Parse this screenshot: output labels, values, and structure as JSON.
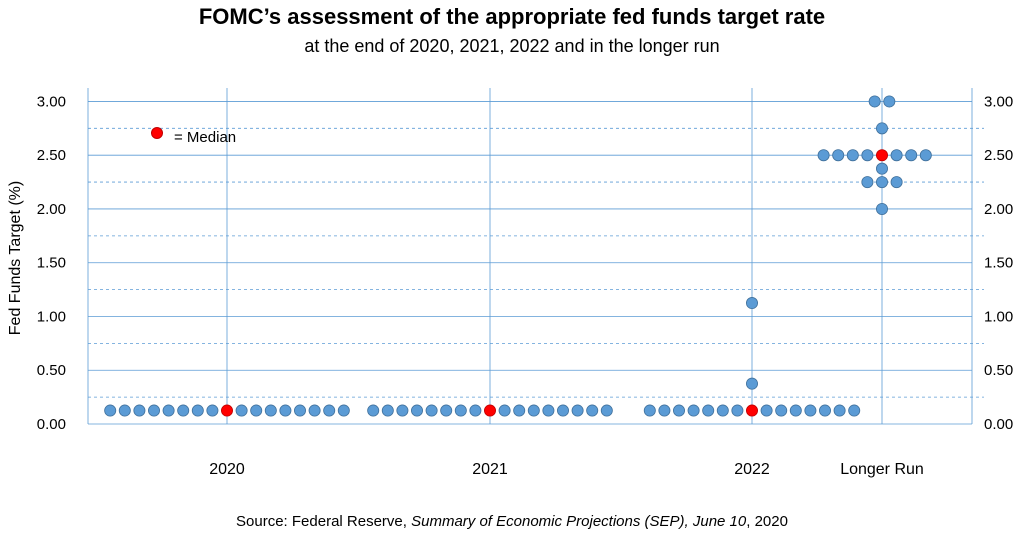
{
  "title": "FOMC’s assessment of the appropriate fed funds target rate",
  "subtitle": "at the end of 2020, 2021, 2022 and in the longer run",
  "source": {
    "prefix": "Source: Federal Reserve, ",
    "italic": "Summary of Economic Projections (SEP), June 10",
    "suffix": ", 2020"
  },
  "legend": {
    "label": "= Median",
    "color": "#ff0000"
  },
  "colors": {
    "dot": "#5b9bd5",
    "dot_stroke": "#41719c",
    "median": "#ff0000",
    "grid": "#5b9bd5"
  },
  "chart_data": {
    "type": "scatter",
    "ylabel": "Fed Funds Target (%)",
    "ylim": [
      0,
      3.125
    ],
    "y_ticks_left": [
      "0.00",
      "0.50",
      "1.00",
      "1.50",
      "2.00",
      "2.50",
      "3.00"
    ],
    "y_ticks_right": [
      "0.00",
      "0.50",
      "1.00",
      "1.50",
      "2.00",
      "2.50",
      "3.00"
    ],
    "categories": [
      "2020",
      "2021",
      "2022",
      "Longer Run"
    ],
    "series": [
      {
        "category": "2020",
        "median": 0.125,
        "points": [
          {
            "value": 0.125,
            "count": 17
          }
        ]
      },
      {
        "category": "2021",
        "median": 0.125,
        "points": [
          {
            "value": 0.125,
            "count": 17
          }
        ]
      },
      {
        "category": "2022",
        "median": 0.125,
        "points": [
          {
            "value": 0.125,
            "count": 15
          },
          {
            "value": 0.375,
            "count": 1
          },
          {
            "value": 1.125,
            "count": 1
          }
        ]
      },
      {
        "category": "Longer Run",
        "median": 2.5,
        "points": [
          {
            "value": 2.0,
            "count": 1
          },
          {
            "value": 2.25,
            "count": 3
          },
          {
            "value": 2.375,
            "count": 1
          },
          {
            "value": 2.5,
            "count": 8
          },
          {
            "value": 2.75,
            "count": 1
          },
          {
            "value": 3.0,
            "count": 2
          }
        ]
      }
    ]
  }
}
